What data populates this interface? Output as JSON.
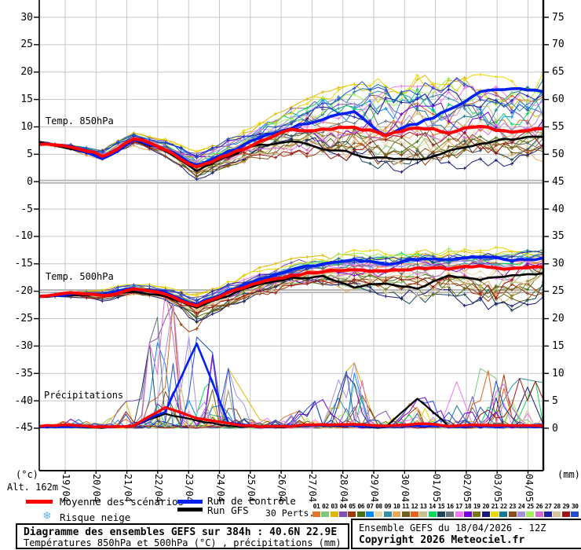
{
  "footer": {
    "title": "Diagramme des ensembles GEFS sur 384h : 40.6N 22.9E",
    "subtitle": "Températures 850hPa et 500hPa (°C) , précipitations (mm)",
    "run_info": "Ensemble GEFS du 18/04/2026 - 12Z",
    "copyright": "Copyright 2026 Meteociel.fr",
    "altitude": "Alt. 162m"
  },
  "legend": {
    "mean_label": "Moyenne des scénarios",
    "control_label": "Run de contrôle",
    "gfs_label": "Run GFS",
    "perts_label": "30 Perts.",
    "snow_label": "Risque neige",
    "snow_icon_color": "#5ab4ee",
    "pert_numbers": [
      "01",
      "02",
      "03",
      "04",
      "05",
      "06",
      "07",
      "08",
      "09",
      "10",
      "11",
      "12",
      "13",
      "14",
      "15",
      "16",
      "17",
      "18",
      "19",
      "20",
      "21",
      "22",
      "23",
      "24",
      "25",
      "26",
      "27",
      "28",
      "29",
      "30"
    ]
  },
  "chart_data": {
    "type": "line",
    "title": "GEFS ensemble diagram 384h, 40.6N 22.9E",
    "x_dates": [
      "19/04",
      "20/04",
      "21/04",
      "22/04",
      "23/04",
      "24/04",
      "25/04",
      "26/04",
      "27/04",
      "28/04",
      "29/04",
      "30/04",
      "01/05",
      "02/05",
      "03/05",
      "04/05"
    ],
    "time_step_hours": 6,
    "run_length_hours": 384,
    "axes": {
      "left_unit": "(°c)",
      "right_unit": "(mm)",
      "left_ticks": [
        30,
        25,
        20,
        15,
        10,
        5,
        0,
        -5,
        -10,
        -15,
        -20,
        -25,
        -30,
        -35,
        -40,
        -45
      ],
      "right_ticks": [
        75,
        70,
        65,
        60,
        55,
        50,
        45,
        40,
        35,
        30,
        25,
        20,
        15,
        10,
        5,
        0
      ],
      "grid": true,
      "reference_lines_c": [
        0,
        -20
      ]
    },
    "series_styles": {
      "mean": {
        "label": "Moyenne des scénarios",
        "color": "#ff0000"
      },
      "control": {
        "label": "Run de contrôle",
        "color": "#0020f0"
      },
      "gfs": {
        "label": "Run GFS",
        "color": "#000000"
      }
    },
    "members": {
      "count": 30,
      "colors": [
        "#E07828",
        "#80C878",
        "#E0B800",
        "#8050B8",
        "#A03808",
        "#487010",
        "#0888F0",
        "#E8D8A8",
        "#3090A8",
        "#E8A858",
        "#706018",
        "#E86018",
        "#C8C088",
        "#08D858",
        "#1A4858",
        "#68727A",
        "#F078F0",
        "#7800E0",
        "#787818",
        "#1A1A78",
        "#E8D800",
        "#187898",
        "#8A4E1E",
        "#A890E0",
        "#A2EE5A",
        "#D46CD4",
        "#2020A8",
        "#D6C69A",
        "#A01616",
        "#2050D0"
      ]
    },
    "panels": {
      "t850": {
        "label": "Temp. 850hPa",
        "anchor_step_hours": 24,
        "mean": [
          7.0,
          6.3,
          4.6,
          7.8,
          6.2,
          2.8,
          5.2,
          7.3,
          9.3,
          9.8,
          10.3,
          8.6,
          9.9,
          9.0,
          10.1,
          8.9,
          9.6
        ],
        "control": [
          7.0,
          6.5,
          4.4,
          7.6,
          6.0,
          3.0,
          5.5,
          7.8,
          9.8,
          11.5,
          12.5,
          8.5,
          10.5,
          13.0,
          16.0,
          17.0,
          16.3
        ],
        "gfs": [
          7.0,
          6.0,
          4.8,
          7.5,
          5.8,
          2.0,
          4.6,
          7.0,
          7.2,
          6.0,
          5.0,
          4.2,
          3.6,
          5.6,
          6.6,
          7.6,
          8.2
        ],
        "env_lo": [
          6.6,
          5.4,
          3.8,
          6.6,
          4.6,
          0.2,
          2.4,
          4.2,
          4.4,
          3.6,
          2.8,
          2.2,
          2.0,
          2.6,
          3.0,
          3.2,
          3.0
        ],
        "env_hi": [
          7.4,
          7.2,
          6.0,
          8.8,
          7.6,
          5.4,
          7.6,
          10.6,
          13.5,
          16.0,
          17.5,
          18.5,
          19.0,
          18.4,
          19.0,
          18.6,
          19.4
        ]
      },
      "t500": {
        "label": "Temp. 500hPa",
        "anchor_step_hours": 24,
        "mean": [
          -21.0,
          -20.6,
          -20.9,
          -19.8,
          -20.6,
          -22.7,
          -20.4,
          -18.4,
          -17.0,
          -16.4,
          -16.0,
          -16.3,
          -15.8,
          -16.1,
          -15.5,
          -15.9,
          -15.4
        ],
        "control": [
          -21.0,
          -20.4,
          -21.0,
          -19.6,
          -20.4,
          -22.4,
          -20.0,
          -17.8,
          -16.2,
          -15.2,
          -14.6,
          -15.0,
          -14.2,
          -14.6,
          -13.8,
          -14.4,
          -13.9
        ],
        "gfs": [
          -21.0,
          -20.8,
          -20.6,
          -20.0,
          -20.8,
          -23.0,
          -20.8,
          -18.8,
          -17.6,
          -17.4,
          -19.4,
          -18.4,
          -19.6,
          -17.2,
          -17.8,
          -17.0,
          -16.6
        ],
        "env_lo": [
          -21.6,
          -21.6,
          -22.2,
          -21.0,
          -21.8,
          -26.8,
          -24.0,
          -21.6,
          -20.0,
          -19.6,
          -21.0,
          -22.0,
          -23.6,
          -22.4,
          -24.6,
          -25.0,
          -24.0
        ],
        "env_hi": [
          -20.4,
          -19.6,
          -19.4,
          -18.6,
          -19.2,
          -20.6,
          -18.2,
          -15.8,
          -14.2,
          -13.0,
          -12.4,
          -12.8,
          -12.2,
          -12.0,
          -12.4,
          -11.8,
          -11.4
        ],
        "member_dips": [
          {
            "member": 5,
            "delta_c": -5.5,
            "hour": 112
          }
        ]
      },
      "precip": {
        "label": "Précipitations",
        "anchor_step_hours": 24,
        "mean": [
          0.4,
          0.6,
          0.3,
          0.6,
          3.9,
          1.7,
          0.9,
          0.3,
          0.4,
          0.8,
          0.6,
          0.5,
          0.9,
          0.4,
          0.7,
          0.5,
          0.4
        ],
        "control": [
          0.2,
          0.3,
          0.2,
          0.4,
          3.0,
          15.5,
          1.0,
          0.2,
          0.3,
          0.5,
          0.4,
          0.3,
          0.5,
          0.2,
          0.4,
          0.3,
          0.2
        ],
        "gfs": [
          0.2,
          0.4,
          0.2,
          0.5,
          2.5,
          1.5,
          0.5,
          0.2,
          0.2,
          0.4,
          0.3,
          0.2,
          5.5,
          0.3,
          0.5,
          0.3,
          0.4
        ],
        "env_hi": [
          1.0,
          1.8,
          0.8,
          6.0,
          24.0,
          16.0,
          10.5,
          1.5,
          2.5,
          5.5,
          11.5,
          3.0,
          6.5,
          3.0,
          10.5,
          9.0,
          8.0
        ],
        "member_spikes": [
          {
            "member": 4,
            "peak_mm": 23.5,
            "hour": 94
          },
          {
            "member": 14,
            "peak_mm": 10.5,
            "hour": 130
          },
          {
            "member": 9,
            "peak_mm": 5.5,
            "hour": 228
          },
          {
            "member": 27,
            "peak_mm": 11.5,
            "hour": 236
          },
          {
            "member": 23,
            "peak_mm": 6.0,
            "hour": 246
          },
          {
            "member": 17,
            "peak_mm": 8.5,
            "hour": 318
          },
          {
            "member": 26,
            "peak_mm": 9.5,
            "hour": 352
          },
          {
            "member": 20,
            "peak_mm": 7.5,
            "hour": 372
          }
        ]
      }
    }
  }
}
